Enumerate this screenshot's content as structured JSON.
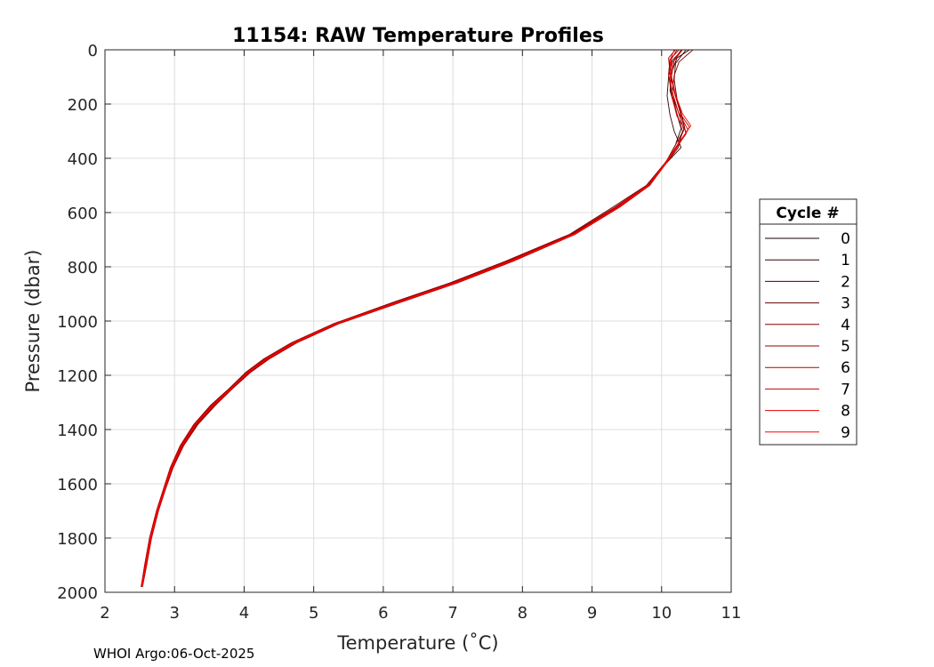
{
  "chart_data": {
    "type": "line",
    "title": "11154: RAW Temperature Profiles",
    "xlabel": "Temperature (˚C)",
    "ylabel": "Pressure (dbar)",
    "xlim": [
      2,
      11
    ],
    "ylim": [
      0,
      2000
    ],
    "y_reversed": true,
    "grid": true,
    "x_ticks": [
      "2",
      "3",
      "4",
      "5",
      "6",
      "7",
      "8",
      "9",
      "10",
      "11"
    ],
    "y_ticks": [
      "0",
      "200",
      "400",
      "600",
      "800",
      "1000",
      "1200",
      "1400",
      "1600",
      "1800",
      "2000"
    ],
    "legend": {
      "title": "Cycle #",
      "placement": "right"
    },
    "footer": "WHOI Argo:06-Oct-2025",
    "series": [
      {
        "name": "0",
        "color": "#1a0000",
        "x": [
          10.4,
          10.22,
          10.15,
          10.12,
          10.2,
          10.28,
          10.2,
          10.05,
          9.8,
          9.35,
          8.7,
          7.8,
          7.0,
          6.2,
          5.3,
          4.7,
          4.3,
          4.05,
          3.8,
          3.55,
          3.3,
          3.1,
          2.95,
          2.85,
          2.75,
          2.65,
          2.58,
          2.52
        ],
        "y": [
          0,
          30,
          80,
          150,
          220,
          290,
          350,
          420,
          500,
          580,
          680,
          780,
          860,
          930,
          1010,
          1080,
          1140,
          1190,
          1250,
          1310,
          1380,
          1460,
          1540,
          1620,
          1700,
          1800,
          1900,
          1980
        ]
      },
      {
        "name": "1",
        "color": "#330000",
        "x": [
          10.3,
          10.15,
          10.1,
          10.08,
          10.12,
          10.18,
          10.28,
          10.06,
          9.82,
          9.38,
          8.75,
          7.85,
          7.05,
          6.25,
          5.35,
          4.75,
          4.35,
          4.08,
          3.82,
          3.58,
          3.33,
          3.12,
          2.97,
          2.86,
          2.76,
          2.66,
          2.59,
          2.53
        ],
        "y": [
          0,
          40,
          100,
          170,
          240,
          300,
          360,
          420,
          500,
          580,
          680,
          780,
          860,
          930,
          1010,
          1080,
          1140,
          1190,
          1250,
          1310,
          1380,
          1460,
          1540,
          1620,
          1700,
          1800,
          1900,
          1980
        ]
      },
      {
        "name": "2",
        "color": "#4d0000",
        "x": [
          10.35,
          10.2,
          10.18,
          10.22,
          10.3,
          10.35,
          10.18,
          10.04,
          9.78,
          9.3,
          8.68,
          7.75,
          6.95,
          6.15,
          5.28,
          4.68,
          4.28,
          4.02,
          3.78,
          3.52,
          3.28,
          3.08,
          2.94,
          2.84,
          2.74,
          2.64,
          2.57,
          2.52
        ],
        "y": [
          0,
          50,
          110,
          180,
          250,
          310,
          370,
          420,
          500,
          580,
          680,
          780,
          860,
          930,
          1010,
          1080,
          1140,
          1190,
          1250,
          1310,
          1380,
          1460,
          1540,
          1620,
          1700,
          1800,
          1900,
          1980
        ]
      },
      {
        "name": "3",
        "color": "#660000",
        "x": [
          10.25,
          10.12,
          10.1,
          10.14,
          10.24,
          10.32,
          10.22,
          10.05,
          9.81,
          9.36,
          8.72,
          7.82,
          7.02,
          6.22,
          5.32,
          4.72,
          4.32,
          4.06,
          3.81,
          3.56,
          3.31,
          3.11,
          2.96,
          2.85,
          2.75,
          2.65,
          2.58,
          2.53
        ],
        "y": [
          0,
          35,
          90,
          160,
          230,
          295,
          355,
          420,
          500,
          580,
          680,
          780,
          860,
          930,
          1010,
          1080,
          1140,
          1190,
          1250,
          1310,
          1380,
          1460,
          1540,
          1620,
          1700,
          1800,
          1900,
          1980
        ]
      },
      {
        "name": "4",
        "color": "#800000",
        "x": [
          10.45,
          10.25,
          10.18,
          10.15,
          10.22,
          10.3,
          10.24,
          10.06,
          9.79,
          9.34,
          8.71,
          7.79,
          6.99,
          6.19,
          5.31,
          4.71,
          4.31,
          4.04,
          3.79,
          3.54,
          3.29,
          3.09,
          2.95,
          2.85,
          2.75,
          2.65,
          2.58,
          2.52
        ],
        "y": [
          0,
          45,
          95,
          165,
          235,
          300,
          360,
          420,
          500,
          580,
          680,
          780,
          860,
          930,
          1010,
          1080,
          1140,
          1190,
          1250,
          1310,
          1380,
          1460,
          1540,
          1620,
          1700,
          1800,
          1900,
          1980
        ]
      },
      {
        "name": "5",
        "color": "#990000",
        "x": [
          10.2,
          10.1,
          10.12,
          10.18,
          10.26,
          10.33,
          10.2,
          10.05,
          9.8,
          9.37,
          8.74,
          7.84,
          7.04,
          6.24,
          5.34,
          4.74,
          4.34,
          4.07,
          3.82,
          3.57,
          3.32,
          3.12,
          2.97,
          2.86,
          2.76,
          2.66,
          2.59,
          2.53
        ],
        "y": [
          0,
          30,
          85,
          155,
          225,
          290,
          350,
          420,
          500,
          580,
          680,
          780,
          860,
          930,
          1010,
          1080,
          1140,
          1190,
          1250,
          1310,
          1380,
          1460,
          1540,
          1620,
          1700,
          1800,
          1900,
          1980
        ]
      },
      {
        "name": "6",
        "color": "#b30000",
        "x": [
          10.3,
          10.18,
          10.14,
          10.2,
          10.28,
          10.4,
          10.26,
          10.06,
          9.83,
          9.4,
          8.76,
          7.86,
          7.06,
          6.26,
          5.36,
          4.76,
          4.36,
          4.09,
          3.83,
          3.59,
          3.34,
          3.13,
          2.98,
          2.87,
          2.77,
          2.67,
          2.6,
          2.54
        ],
        "y": [
          0,
          40,
          100,
          170,
          240,
          285,
          345,
          420,
          500,
          580,
          680,
          780,
          860,
          930,
          1010,
          1080,
          1140,
          1190,
          1250,
          1310,
          1380,
          1460,
          1540,
          1620,
          1700,
          1800,
          1900,
          1980
        ]
      },
      {
        "name": "7",
        "color": "#cc0000",
        "x": [
          10.22,
          10.14,
          10.1,
          10.16,
          10.24,
          10.38,
          10.22,
          10.04,
          9.79,
          9.33,
          8.69,
          7.77,
          6.97,
          6.17,
          5.29,
          4.69,
          4.29,
          4.03,
          3.79,
          3.53,
          3.28,
          3.08,
          2.94,
          2.84,
          2.74,
          2.64,
          2.57,
          2.52
        ],
        "y": [
          0,
          35,
          90,
          160,
          230,
          295,
          355,
          420,
          500,
          580,
          680,
          780,
          860,
          930,
          1010,
          1080,
          1140,
          1190,
          1250,
          1310,
          1380,
          1460,
          1540,
          1620,
          1700,
          1800,
          1900,
          1980
        ]
      },
      {
        "name": "8",
        "color": "#e60000",
        "x": [
          10.28,
          10.16,
          10.12,
          10.15,
          10.22,
          10.36,
          10.2,
          10.05,
          9.8,
          9.36,
          8.73,
          7.81,
          7.01,
          6.21,
          5.31,
          4.71,
          4.31,
          4.05,
          3.8,
          3.55,
          3.3,
          3.1,
          2.95,
          2.85,
          2.75,
          2.65,
          2.58,
          2.52
        ],
        "y": [
          0,
          45,
          105,
          175,
          245,
          305,
          360,
          420,
          500,
          580,
          680,
          780,
          860,
          930,
          1010,
          1080,
          1140,
          1190,
          1250,
          1310,
          1380,
          1460,
          1540,
          1620,
          1700,
          1800,
          1900,
          1980
        ]
      },
      {
        "name": "9",
        "color": "#ff0000",
        "x": [
          10.18,
          10.12,
          10.14,
          10.2,
          10.3,
          10.42,
          10.24,
          10.06,
          9.82,
          9.38,
          8.75,
          7.83,
          7.03,
          6.23,
          5.33,
          4.73,
          4.33,
          4.06,
          3.81,
          3.56,
          3.31,
          3.11,
          2.96,
          2.86,
          2.76,
          2.66,
          2.59,
          2.53
        ],
        "y": [
          0,
          40,
          95,
          165,
          235,
          280,
          345,
          420,
          500,
          580,
          680,
          780,
          860,
          930,
          1010,
          1080,
          1140,
          1190,
          1250,
          1310,
          1380,
          1460,
          1540,
          1620,
          1700,
          1800,
          1900,
          1980
        ]
      }
    ]
  }
}
